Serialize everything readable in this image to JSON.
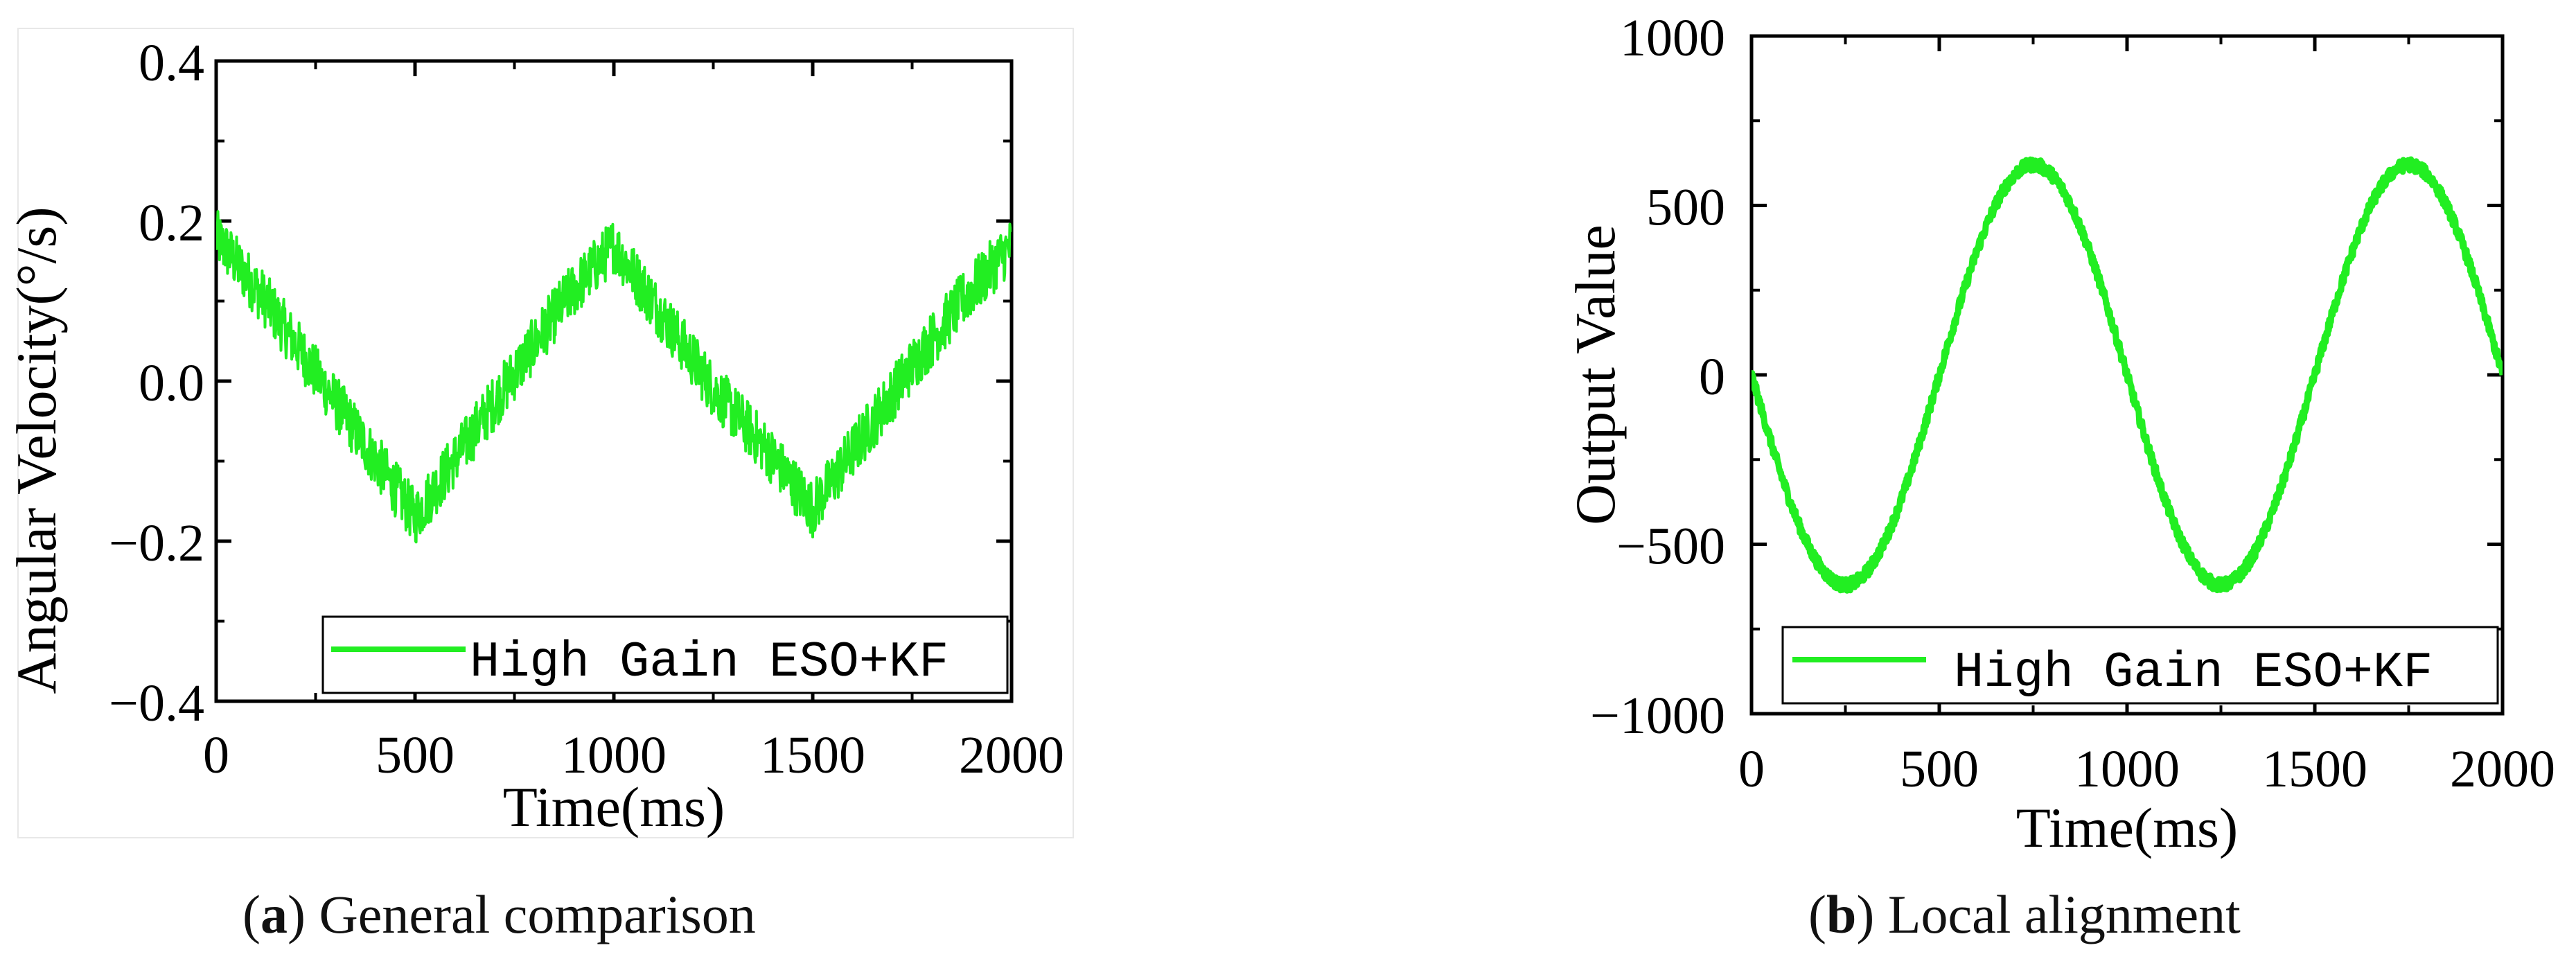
{
  "chart_data": [
    {
      "type": "line",
      "panel": "a",
      "caption_letter": "a",
      "caption_text": "General comparison",
      "xlabel": "Time(ms)",
      "ylabel": "Angular Velocity(°/s)",
      "xlim": [
        0,
        2000
      ],
      "ylim": [
        -0.4,
        0.4
      ],
      "xticks": [
        "0",
        "500",
        "1000",
        "1500",
        "2000"
      ],
      "yticks": [
        "-0.4",
        "-0.2",
        "0.0",
        "0.2",
        "0.4"
      ],
      "legend_position": "bottom-right",
      "grid": false,
      "series": [
        {
          "name": "High Gain ESO+KF",
          "color": "#22ee22",
          "x": [
            0,
            125,
            250,
            375,
            500,
            625,
            750,
            875,
            1000,
            1125,
            1250,
            1375,
            1500,
            1625,
            1750,
            1875,
            2000
          ],
          "y": [
            0.18,
            0.1,
            0.01,
            -0.08,
            -0.17,
            -0.08,
            0.01,
            0.1,
            0.17,
            0.08,
            -0.01,
            -0.08,
            -0.16,
            -0.07,
            0.02,
            0.1,
            0.17
          ],
          "noise_amplitude": 0.035
        }
      ]
    },
    {
      "type": "line",
      "panel": "b",
      "caption_letter": "b",
      "caption_text": "Local alignment",
      "xlabel": "Time(ms)",
      "ylabel": "Output Value",
      "xlim": [
        0,
        2000
      ],
      "ylim": [
        -1000,
        1000
      ],
      "xticks": [
        "0",
        "500",
        "1000",
        "1500",
        "2000"
      ],
      "yticks": [
        "-1000",
        "-500",
        "0",
        "500",
        "1000"
      ],
      "legend_position": "bottom-right",
      "grid": false,
      "series": [
        {
          "name": "High Gain ESO+KF",
          "color": "#22ee22",
          "x": [
            0,
            250,
            750,
            1250,
            1750,
            2000
          ],
          "y": [
            0,
            -620,
            620,
            -620,
            620,
            0
          ],
          "shape": "sine",
          "amplitude": 620,
          "period_ms": 1000,
          "phase": "negative-sine",
          "noise_amplitude": 18
        }
      ]
    }
  ]
}
